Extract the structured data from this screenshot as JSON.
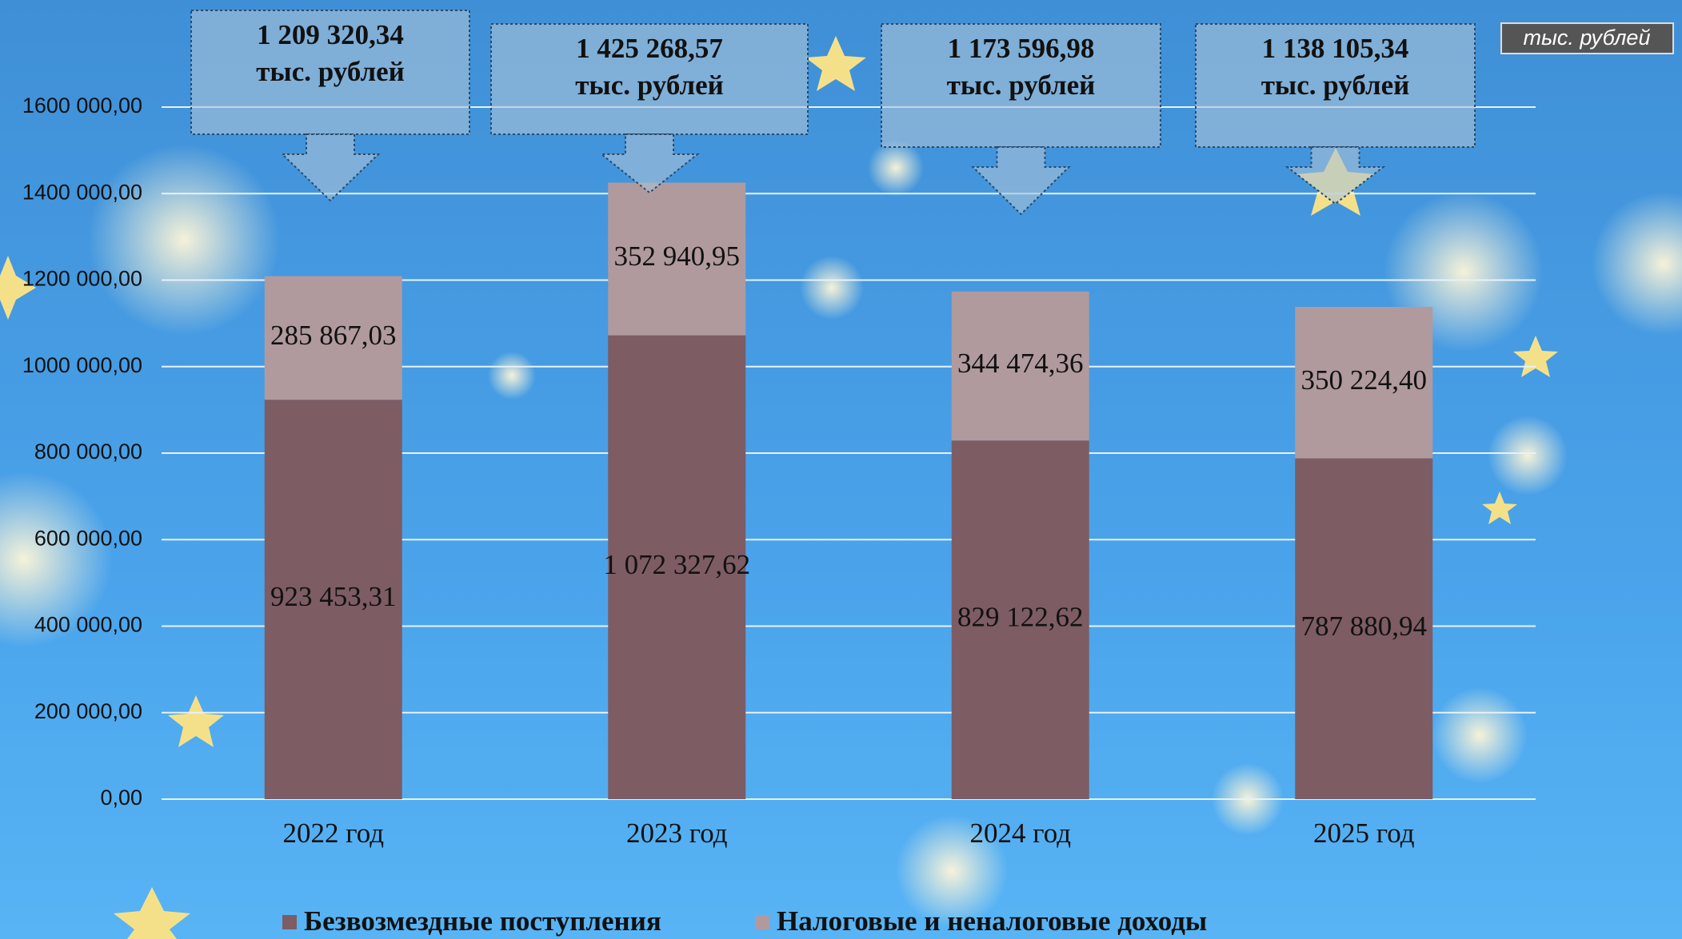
{
  "chart_data": {
    "type": "stacked_bar",
    "unit": "тыс. рублей",
    "categories": [
      "2022 год",
      "2023 год",
      "2024 год",
      "2025 год"
    ],
    "series": [
      {
        "name": "Безвозмездные поступления",
        "color": "#7d5c64",
        "values": [
          923453.31,
          1072327.62,
          829122.62,
          787880.94
        ],
        "value_labels": [
          "923 453,31",
          "1 072 327,62",
          "829 122,62",
          "787 880,94"
        ]
      },
      {
        "name": "Налоговые и неналоговые доходы",
        "color": "#b09a9e",
        "values": [
          285867.03,
          352940.95,
          344474.36,
          350224.4
        ],
        "value_labels": [
          "285 867,03",
          "352 940,95",
          "344 474,36",
          "350 224,40"
        ]
      }
    ],
    "totals": [
      1209320.34,
      1425268.57,
      1173596.98,
      1138105.34
    ],
    "total_labels": [
      "1 209 320,34",
      "1 425 268,57",
      "1 173 596,98",
      "1 138 105,34"
    ],
    "ylim": [
      0,
      1600000
    ],
    "yticks": [
      {
        "value": 0,
        "label": "0,00"
      },
      {
        "value": 200000,
        "label": "200 000,00"
      },
      {
        "value": 400000,
        "label": "400 000,00"
      },
      {
        "value": 600000,
        "label": "600 000,00"
      },
      {
        "value": 800000,
        "label": "800 000,00"
      },
      {
        "value": 1000000,
        "label": "1000 000,00"
      },
      {
        "value": 1200000,
        "label": "1200 000,00"
      },
      {
        "value": 1400000,
        "label": "1400 000,00"
      },
      {
        "value": 1600000,
        "label": "1600 000,00"
      }
    ],
    "grid": true
  }
}
